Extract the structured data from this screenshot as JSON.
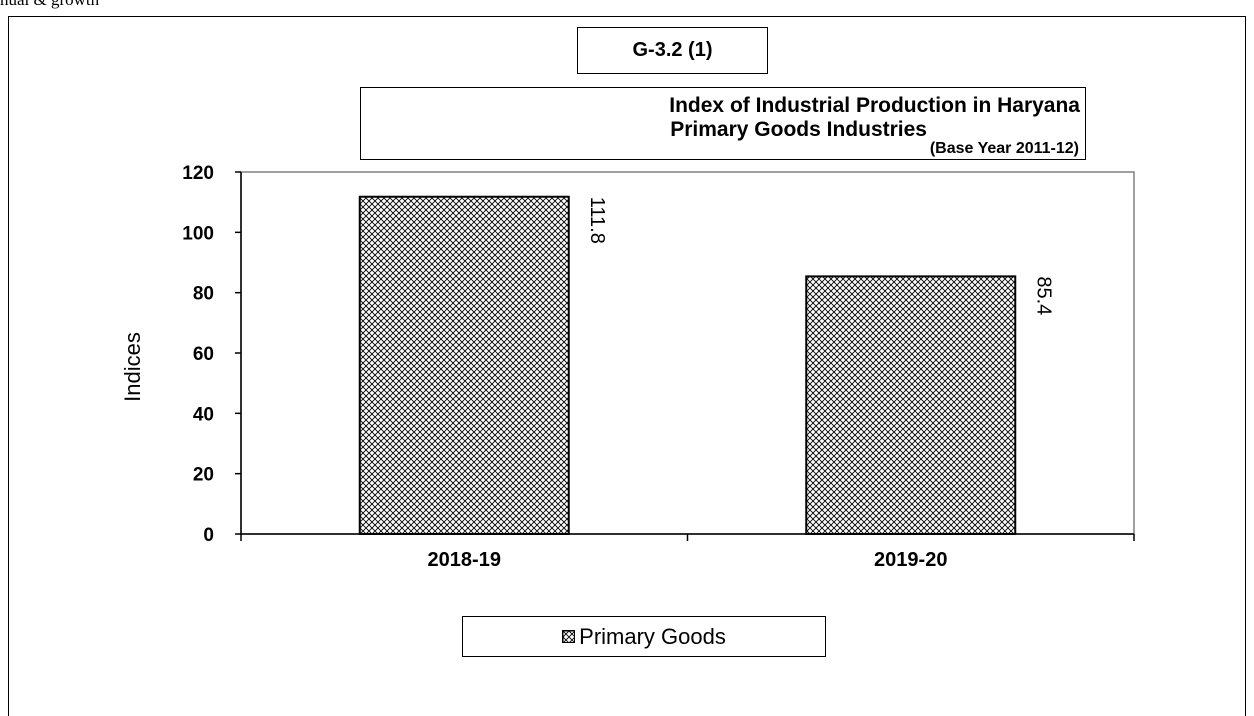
{
  "page": {
    "header_fragment": "nual & growth"
  },
  "figure_label": "G-3.2 (1)",
  "chart_data": {
    "type": "bar",
    "title_lines": [
      "Index of Industrial Production in Haryana",
      "Primary Goods Industries",
      "(Base Year  2011-12)"
    ],
    "categories": [
      "2018-19",
      "2019-20"
    ],
    "series": [
      {
        "name": "Primary Goods",
        "values": [
          111.8,
          85.4
        ]
      }
    ],
    "data_labels": [
      "111.8",
      "85.4"
    ],
    "xlabel": "",
    "ylabel": "Indices",
    "ylim": [
      0,
      120
    ],
    "yticks": [
      0,
      20,
      40,
      60,
      80,
      100,
      120
    ],
    "ytick_labels": [
      "0",
      "20",
      "40",
      "60",
      "80",
      "100",
      "120"
    ],
    "grid": false,
    "legend_position": "bottom",
    "bar_fill": "crosshatch",
    "colors": {
      "bar_fill": "#ffffff",
      "hatch": "#000000",
      "axis": "#808080"
    }
  }
}
